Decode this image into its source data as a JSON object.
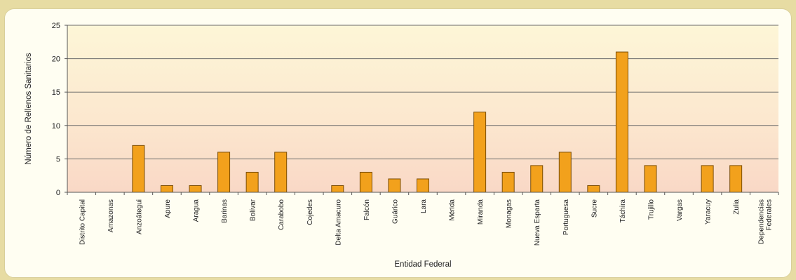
{
  "chart_data": {
    "type": "bar",
    "xlabel": "Entidad Federal",
    "ylabel": "Número de Rellenos Sanitarios",
    "ylim": [
      0,
      25
    ],
    "yticks": [
      0,
      5,
      10,
      15,
      20,
      25
    ],
    "grid": true,
    "categories": [
      "Distrito Capital",
      "Amazonas",
      "Anzoátegui",
      "Apure",
      "Aragua",
      "Barinas",
      "Bolívar",
      "Carabobo",
      "Cojedes",
      "Delta Amacuro",
      "Falcón",
      "Guárico",
      "Lara",
      "Mérida",
      "Miranda",
      "Monagas",
      "Nueva Esparta",
      "Portuguesa",
      "Sucre",
      "Táchira",
      "Trujillo",
      "Vargas",
      "Yaracuy",
      "Zulia",
      "Dependencias Federales"
    ],
    "values": [
      0,
      0,
      7,
      1,
      1,
      6,
      3,
      6,
      0,
      1,
      3,
      2,
      2,
      0,
      12,
      3,
      4,
      6,
      1,
      21,
      4,
      0,
      4,
      4,
      0
    ],
    "bar_color": "#f2a11c",
    "bar_edge_color": "#7a4d05"
  }
}
